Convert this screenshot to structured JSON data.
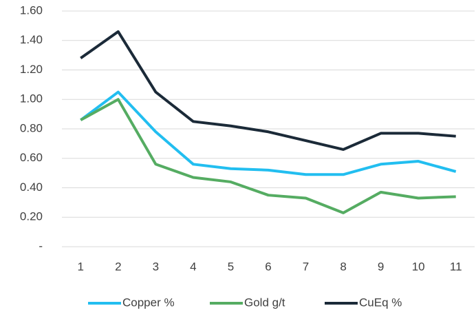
{
  "chart_data": {
    "type": "line",
    "categories": [
      "1",
      "2",
      "3",
      "4",
      "5",
      "6",
      "7",
      "8",
      "9",
      "10",
      "11"
    ],
    "series": [
      {
        "name": "Copper %",
        "color": "#22bef0",
        "values": [
          0.86,
          1.05,
          0.78,
          0.56,
          0.53,
          0.52,
          0.49,
          0.49,
          0.56,
          0.58,
          0.51
        ]
      },
      {
        "name": "Gold g/t",
        "color": "#55ac62",
        "values": [
          0.86,
          1.0,
          0.56,
          0.47,
          0.44,
          0.35,
          0.33,
          0.23,
          0.37,
          0.33,
          0.34
        ]
      },
      {
        "name": "CuEq %",
        "color": "#1b2a38",
        "values": [
          1.28,
          1.46,
          1.05,
          0.85,
          0.82,
          0.78,
          0.72,
          0.66,
          0.77,
          0.77,
          0.75
        ]
      }
    ],
    "ylim": [
      0,
      1.6
    ],
    "yticks": [
      {
        "value": 0,
        "label": "-"
      },
      {
        "value": 0.2,
        "label": "0.20"
      },
      {
        "value": 0.4,
        "label": "0.40"
      },
      {
        "value": 0.6,
        "label": "0.60"
      },
      {
        "value": 0.8,
        "label": "0.80"
      },
      {
        "value": 1.0,
        "label": "1.00"
      },
      {
        "value": 1.2,
        "label": "1.20"
      },
      {
        "value": 1.4,
        "label": "1.40"
      },
      {
        "value": 1.6,
        "label": "1.60"
      }
    ],
    "grid": true,
    "legend": "bottom"
  }
}
